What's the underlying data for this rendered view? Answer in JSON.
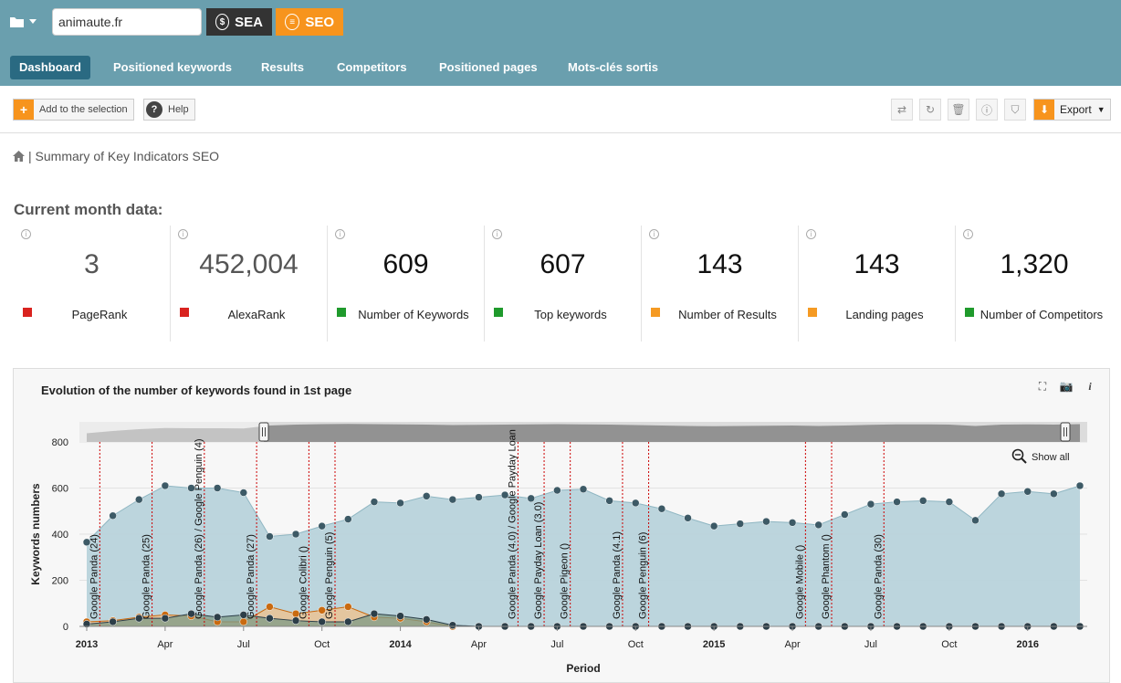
{
  "topbar": {
    "domain_value": "animaute.fr",
    "sea_label": "SEA",
    "seo_label": "SEO",
    "sea_icon": "$"
  },
  "nav": {
    "items": [
      {
        "label": "Dashboard",
        "active": true
      },
      {
        "label": "Positioned keywords"
      },
      {
        "label": "Results"
      },
      {
        "label": "Competitors"
      },
      {
        "label": "Positioned pages"
      },
      {
        "label": "Mots-clés sortis"
      }
    ]
  },
  "toolbar": {
    "add_label": "Add to the selection",
    "help_label": "Help",
    "export_label": "Export"
  },
  "breadcrumb": {
    "text": "| Summary of Key Indicators SEO"
  },
  "section_title": "Current month data:",
  "kpis": [
    {
      "value": "3",
      "label": "PageRank",
      "color": "#d9231f",
      "gray": true
    },
    {
      "value": "452,004",
      "label": "AlexaRank",
      "color": "#d9231f",
      "gray": true
    },
    {
      "value": "609",
      "label": "Number of Keywords",
      "color": "#1f9a2c"
    },
    {
      "value": "607",
      "label": "Top keywords",
      "color": "#1f9a2c"
    },
    {
      "value": "143",
      "label": "Number of Results",
      "color": "#f59a23"
    },
    {
      "value": "143",
      "label": "Landing pages",
      "color": "#f59a23"
    },
    {
      "value": "1,320",
      "label": "Number of Competitors",
      "color": "#1f9a2c"
    }
  ],
  "chart_data": {
    "type": "area",
    "title": "Evolution of the number of keywords found in 1st page",
    "xlabel": "Period",
    "ylabel": "Keywords numbers",
    "ylim": [
      0,
      800
    ],
    "yticks": [
      0,
      200,
      400,
      600,
      800
    ],
    "show_all_label": "Show all",
    "xtick_labels": [
      {
        "label": "2013",
        "bold": true,
        "i": 0
      },
      {
        "label": "Apr",
        "i": 3
      },
      {
        "label": "Jul",
        "i": 6
      },
      {
        "label": "Oct",
        "i": 9
      },
      {
        "label": "2014",
        "bold": true,
        "i": 12
      },
      {
        "label": "Apr",
        "i": 15
      },
      {
        "label": "Jul",
        "i": 18
      },
      {
        "label": "Oct",
        "i": 21
      },
      {
        "label": "2015",
        "bold": true,
        "i": 24
      },
      {
        "label": "Apr",
        "i": 27
      },
      {
        "label": "Jul",
        "i": 30
      },
      {
        "label": "Oct",
        "i": 33
      },
      {
        "label": "2016",
        "bold": true,
        "i": 36
      }
    ],
    "series": [
      {
        "color": "#b8d3db",
        "marker": "#3d5a66",
        "values": [
          365,
          480,
          550,
          610,
          600,
          600,
          580,
          390,
          400,
          435,
          465,
          540,
          535,
          565,
          550,
          560,
          570,
          555,
          590,
          595,
          545,
          535,
          510,
          470,
          435,
          445,
          455,
          450,
          440,
          485,
          530,
          540,
          545,
          540,
          460,
          575,
          585,
          575,
          610
        ]
      },
      {
        "color": "#f2c08a",
        "marker": "#c96a10",
        "values": [
          20,
          25,
          40,
          50,
          45,
          20,
          20,
          85,
          55,
          70,
          85,
          40,
          35,
          20,
          0,
          0,
          0,
          0,
          0,
          0,
          0,
          0,
          0,
          0,
          0,
          0,
          0,
          0,
          0,
          0,
          0,
          0,
          0,
          0,
          0,
          0,
          0,
          0,
          0
        ]
      },
      {
        "color": "#7e9a86",
        "marker": "#2c3e48",
        "values": [
          10,
          20,
          35,
          35,
          55,
          40,
          50,
          35,
          25,
          20,
          20,
          55,
          45,
          30,
          5,
          0,
          0,
          0,
          0,
          0,
          0,
          0,
          0,
          0,
          0,
          0,
          0,
          0,
          0,
          0,
          0,
          0,
          0,
          0,
          0,
          0,
          0,
          0,
          0
        ]
      }
    ],
    "events": [
      {
        "label": "Google Panda (24)",
        "x": 0.5
      },
      {
        "label": "Google Panda (25)",
        "x": 2.5
      },
      {
        "label": "Google Panda (26) / Google Penguin (4)",
        "x": 4.5
      },
      {
        "label": "Google Panda (27)",
        "x": 6.5
      },
      {
        "label": "Google Colibri ()",
        "x": 8.5
      },
      {
        "label": "Google Penguin (5)",
        "x": 9.5
      },
      {
        "label": "Google Panda (4.0) / Google Payday Loan",
        "x": 16.5
      },
      {
        "label": "Google Payday Loan (3.0)",
        "x": 17.5
      },
      {
        "label": "Google Pigeon ()",
        "x": 18.5
      },
      {
        "label": "Google Panda (4.1)",
        "x": 20.5
      },
      {
        "label": "Google Penguin (6)",
        "x": 21.5
      },
      {
        "label": "Google Mobile ()",
        "x": 27.5
      },
      {
        "label": "Google Phantom ()",
        "x": 28.5
      },
      {
        "label": "Google Panda (30)",
        "x": 30.5
      }
    ],
    "navigator": {
      "values": [
        380,
        480,
        560,
        610,
        600,
        600,
        590,
        720,
        760,
        780,
        790,
        780,
        770,
        760,
        740,
        750,
        760,
        770,
        780,
        770,
        760,
        740,
        720,
        700,
        690,
        700,
        710,
        720,
        700,
        720,
        750,
        770,
        770,
        760,
        700,
        760,
        770,
        760,
        780
      ]
    }
  }
}
